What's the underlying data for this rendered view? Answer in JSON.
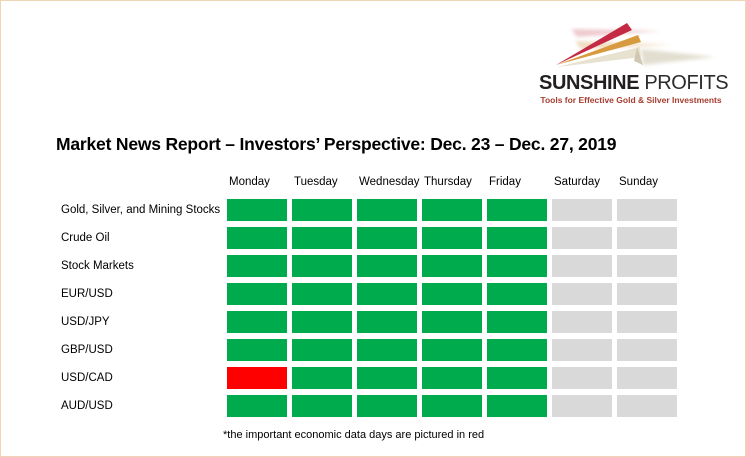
{
  "page": {
    "border_color": "#f0d4b4",
    "background": "#ffffff"
  },
  "logo": {
    "name_bold": "SUNSHINE",
    "name_light": "PROFITS",
    "name_color": "#231f20",
    "tagline": "Tools for Effective Gold & Silver Investments",
    "tagline_color": "#a63d2f",
    "ray_colors": {
      "red": "#c42a43",
      "gold": "#d89a3f",
      "cream": "#e7e1cf",
      "fold": "#cfc8b2"
    },
    "icon": "sunshine-profits-rays-icon"
  },
  "title": "Market News Report – Investors’ Perspective: Dec. 23 – Dec. 27, 2019",
  "footnote": "*the important economic data days are pictured in red",
  "chart_data": {
    "type": "heatmap",
    "title": "Market News Report – Investors’ Perspective: Dec. 23 – Dec. 27, 2019",
    "columns": [
      "Monday",
      "Tuesday",
      "Wednesday",
      "Thursday",
      "Friday",
      "Saturday",
      "Sunday"
    ],
    "rows": [
      {
        "label": "Gold, Silver, and Mining Stocks",
        "cells": [
          "green",
          "green",
          "green",
          "green",
          "green",
          "gray",
          "gray"
        ]
      },
      {
        "label": "Crude Oil",
        "cells": [
          "green",
          "green",
          "green",
          "green",
          "green",
          "gray",
          "gray"
        ]
      },
      {
        "label": "Stock Markets",
        "cells": [
          "green",
          "green",
          "green",
          "green",
          "green",
          "gray",
          "gray"
        ]
      },
      {
        "label": "EUR/USD",
        "cells": [
          "green",
          "green",
          "green",
          "green",
          "green",
          "gray",
          "gray"
        ]
      },
      {
        "label": "USD/JPY",
        "cells": [
          "green",
          "green",
          "green",
          "green",
          "green",
          "gray",
          "gray"
        ]
      },
      {
        "label": "GBP/USD",
        "cells": [
          "green",
          "green",
          "green",
          "green",
          "green",
          "gray",
          "gray"
        ]
      },
      {
        "label": "USD/CAD",
        "cells": [
          "red",
          "green",
          "green",
          "green",
          "green",
          "gray",
          "gray"
        ]
      },
      {
        "label": "AUD/USD",
        "cells": [
          "green",
          "green",
          "green",
          "green",
          "green",
          "gray",
          "gray"
        ]
      }
    ],
    "cell_colors": {
      "green": "#00ab4e",
      "red": "#ff0000",
      "gray": "#d9d9d9"
    },
    "note": "*the important economic data days are pictured in red",
    "grid_lines": false,
    "legend_position": "none"
  }
}
